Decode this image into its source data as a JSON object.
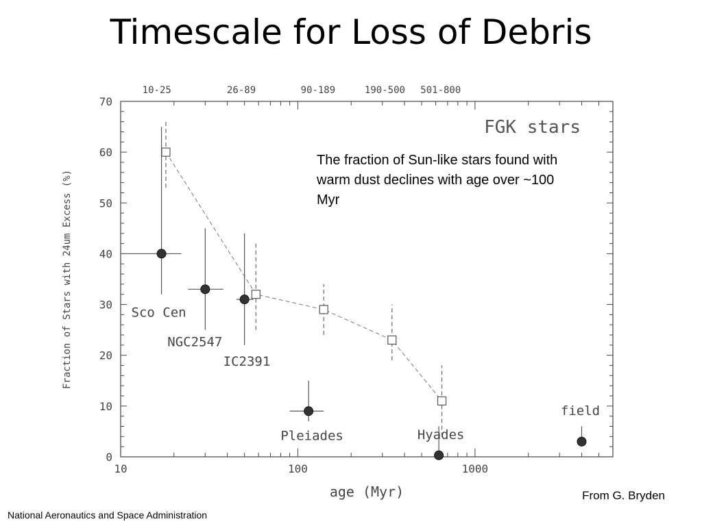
{
  "slide": {
    "title": "Timescale for Loss of Debris",
    "caption": "The fraction of  Sun-like stars found with warm dust declines with age over ~100 Myr",
    "credit": "From G. Bryden",
    "footer": "National Aeronautics and Space Administration"
  },
  "chart_data": {
    "type": "scatter",
    "title": "FGK stars",
    "xlabel": "age (Myr)",
    "ylabel": "Fraction of Stars with 24um Excess (%)",
    "xscale": "log",
    "xlim": [
      10,
      6000
    ],
    "ylim": [
      0,
      70
    ],
    "grid": false,
    "x_ticks": [
      10,
      100,
      1000
    ],
    "x_tick_labels": [
      "10",
      "100",
      "1000"
    ],
    "y_ticks": [
      0,
      10,
      20,
      30,
      40,
      50,
      60,
      70
    ],
    "top_bins": [
      {
        "label": "10-25",
        "x": 16
      },
      {
        "label": "26-89",
        "x": 48
      },
      {
        "label": "90-189",
        "x": 130
      },
      {
        "label": "190-500",
        "x": 310
      },
      {
        "label": "501-800",
        "x": 640
      }
    ],
    "clusters": [
      {
        "name": "Sco Cen",
        "x": 17,
        "y": 40,
        "yerr": [
          32,
          65
        ],
        "xerr": [
          10,
          22
        ]
      },
      {
        "name": "NGC2547",
        "x": 30,
        "y": 33,
        "yerr": [
          25,
          45
        ],
        "xerr": [
          24,
          38
        ]
      },
      {
        "name": "IC2391",
        "x": 50,
        "y": 31,
        "yerr": [
          22,
          44
        ],
        "xerr": [
          45,
          56
        ]
      },
      {
        "name": "Pleiades",
        "x": 115,
        "y": 9,
        "yerr": [
          7,
          15
        ],
        "xerr": [
          90,
          140
        ]
      },
      {
        "name": "Hyades",
        "x": 625,
        "y": 0.3,
        "yerr": [
          0,
          6
        ],
        "xerr": [
          600,
          660
        ]
      },
      {
        "name": "field",
        "x": 4000,
        "y": 3,
        "yerr": [
          2,
          6
        ],
        "xerr": [
          3800,
          4200
        ]
      }
    ],
    "binned": [
      {
        "x": 18,
        "y": 60,
        "yerr": [
          53,
          66
        ]
      },
      {
        "x": 58,
        "y": 32,
        "yerr": [
          25,
          42
        ]
      },
      {
        "x": 140,
        "y": 29,
        "yerr": [
          24,
          34
        ]
      },
      {
        "x": 340,
        "y": 23,
        "yerr": [
          19,
          30
        ]
      },
      {
        "x": 650,
        "y": 11,
        "yerr": [
          4,
          18
        ]
      }
    ]
  }
}
